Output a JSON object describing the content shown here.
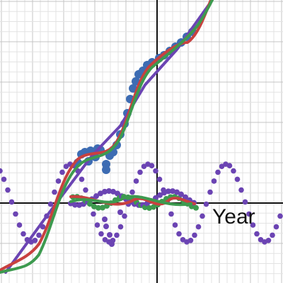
{
  "graph": {
    "x_axis_label": "Year"
  }
}
